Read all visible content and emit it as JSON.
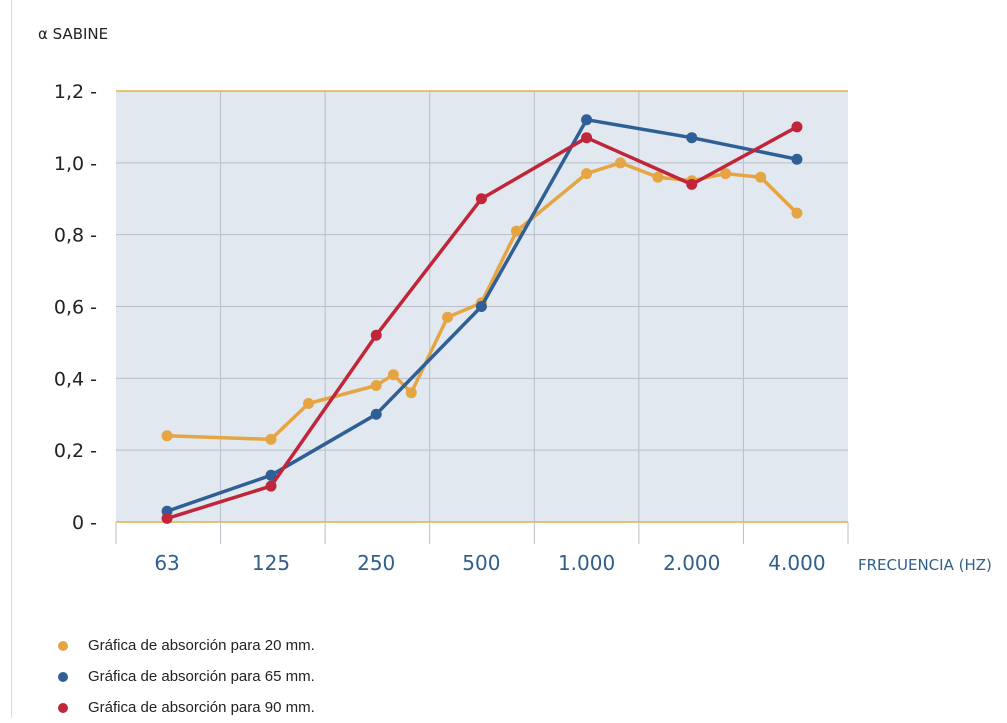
{
  "chart_data": {
    "type": "line",
    "ylabel": "α SABINE",
    "xlabel": "FRECUENCIA (HZ)",
    "categories": [
      "63",
      "125",
      "250",
      "500",
      "1.000",
      "2.000",
      "4.000"
    ],
    "y_ticks": [
      {
        "value": 0,
        "label": "0 -"
      },
      {
        "value": 0.2,
        "label": "0,2 -"
      },
      {
        "value": 0.4,
        "label": "0,4 -"
      },
      {
        "value": 0.6,
        "label": "0,6 -"
      },
      {
        "value": 0.8,
        "label": "0,8 -"
      },
      {
        "value": 1.0,
        "label": "1,0 -"
      },
      {
        "value": 1.2,
        "label": "1,2 -"
      }
    ],
    "ylim": [
      0,
      1.2
    ],
    "grid": true,
    "legend_position": "bottom-left",
    "series": [
      {
        "name": "Gráfica de absorción para 20 mm.",
        "color": "#e5a543",
        "points": [
          {
            "x": 63,
            "y": 0.24
          },
          {
            "x": 125,
            "y": 0.23
          },
          {
            "x": 160,
            "y": 0.33
          },
          {
            "x": 250,
            "y": 0.38
          },
          {
            "x": 280,
            "y": 0.41
          },
          {
            "x": 315,
            "y": 0.36
          },
          {
            "x": 400,
            "y": 0.57
          },
          {
            "x": 500,
            "y": 0.61
          },
          {
            "x": 630,
            "y": 0.81
          },
          {
            "x": 1000,
            "y": 0.97
          },
          {
            "x": 1250,
            "y": 1.0
          },
          {
            "x": 1600,
            "y": 0.96
          },
          {
            "x": 2000,
            "y": 0.95
          },
          {
            "x": 2500,
            "y": 0.97
          },
          {
            "x": 3150,
            "y": 0.96
          },
          {
            "x": 4000,
            "y": 0.86
          }
        ]
      },
      {
        "name": "Gráfica de absorción para 65 mm.",
        "color": "#2f5f96",
        "points": [
          {
            "x": 63,
            "y": 0.03
          },
          {
            "x": 125,
            "y": 0.13
          },
          {
            "x": 250,
            "y": 0.3
          },
          {
            "x": 500,
            "y": 0.6
          },
          {
            "x": 1000,
            "y": 1.12
          },
          {
            "x": 2000,
            "y": 1.07
          },
          {
            "x": 4000,
            "y": 1.01
          }
        ]
      },
      {
        "name": "Gráfica de absorción para 90 mm.",
        "color": "#c0253a",
        "points": [
          {
            "x": 63,
            "y": 0.01
          },
          {
            "x": 125,
            "y": 0.1
          },
          {
            "x": 250,
            "y": 0.52
          },
          {
            "x": 500,
            "y": 0.9
          },
          {
            "x": 1000,
            "y": 1.07
          },
          {
            "x": 2000,
            "y": 0.94
          },
          {
            "x": 4000,
            "y": 1.1
          }
        ]
      }
    ]
  },
  "colors": {
    "plot_background": "#e1e8ef",
    "grid": "#b8bfc7",
    "frame": "#e5b04a"
  }
}
